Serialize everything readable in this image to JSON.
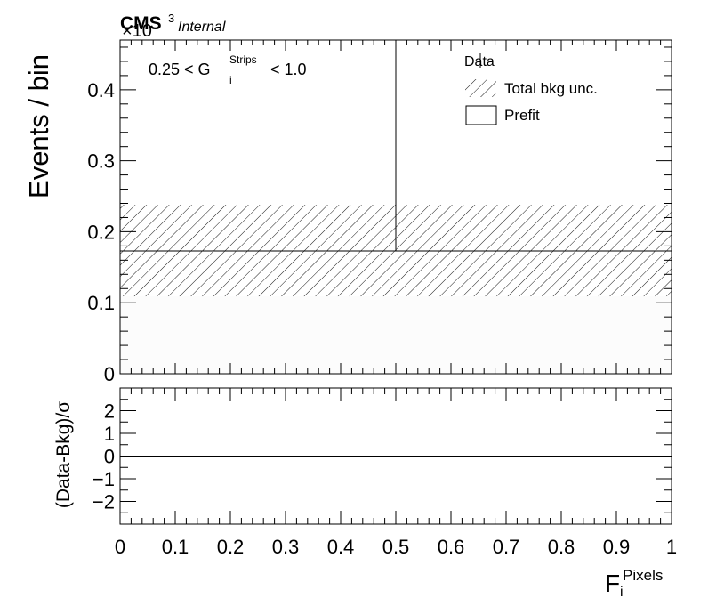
{
  "header": {
    "experiment": "CMS",
    "status": "Internal",
    "multiplier": "×10",
    "multiplier_exponent": "3"
  },
  "top_panel": {
    "ylabel": "Events / bin",
    "region_label_prefix": "0.25 < G",
    "region_label_sup": "Strips",
    "region_label_sub": "i",
    "region_label_suffix": " < 1.0",
    "legend": {
      "position": "top-right",
      "entries": [
        {
          "label": "Data",
          "style": "marker"
        },
        {
          "label": "Total bkg unc.",
          "style": "hatched"
        },
        {
          "label": "Prefit",
          "style": "box"
        }
      ]
    }
  },
  "bottom_panel": {
    "ylabel": "(Data-Bkg)/σ"
  },
  "xaxis": {
    "label_main": "F",
    "label_sup": "Pixels",
    "label_sub": "i"
  },
  "chart_data": [
    {
      "type": "bar",
      "panel": "main",
      "ylabel": "Events / bin",
      "y_multiplier": 1000,
      "xlim": [
        0,
        1
      ],
      "ylim": [
        0,
        0.47
      ],
      "x_ticks": [
        "0",
        "0.1",
        "0.2",
        "0.3",
        "0.4",
        "0.5",
        "0.6",
        "0.7",
        "0.8",
        "0.9",
        "1"
      ],
      "y_ticks": [
        "0",
        "0.1",
        "0.2",
        "0.3",
        "0.4"
      ],
      "bins": [
        [
          0,
          0.5
        ],
        [
          0.5,
          1.0
        ]
      ],
      "series": [
        {
          "name": "Prefit",
          "style": "step",
          "values": [
            0.173,
            0.173
          ]
        },
        {
          "name": "Total bkg unc.",
          "style": "hatched-band",
          "low": [
            0.109,
            0.109
          ],
          "high": [
            0.238,
            0.238
          ]
        },
        {
          "name": "Data",
          "style": "marker",
          "values": [
            0,
            0
          ]
        }
      ],
      "grid": false,
      "legend_position": "top-right"
    },
    {
      "type": "line",
      "panel": "ratio",
      "ylabel": "(Data-Bkg)/σ",
      "xlim": [
        0,
        1
      ],
      "ylim": [
        -3,
        3
      ],
      "y_ticks": [
        "−2",
        "−1",
        "0",
        "1",
        "2"
      ],
      "y_tick_values": [
        -2,
        -1,
        0,
        1,
        2
      ],
      "reference_line": 0,
      "grid": false
    }
  ]
}
